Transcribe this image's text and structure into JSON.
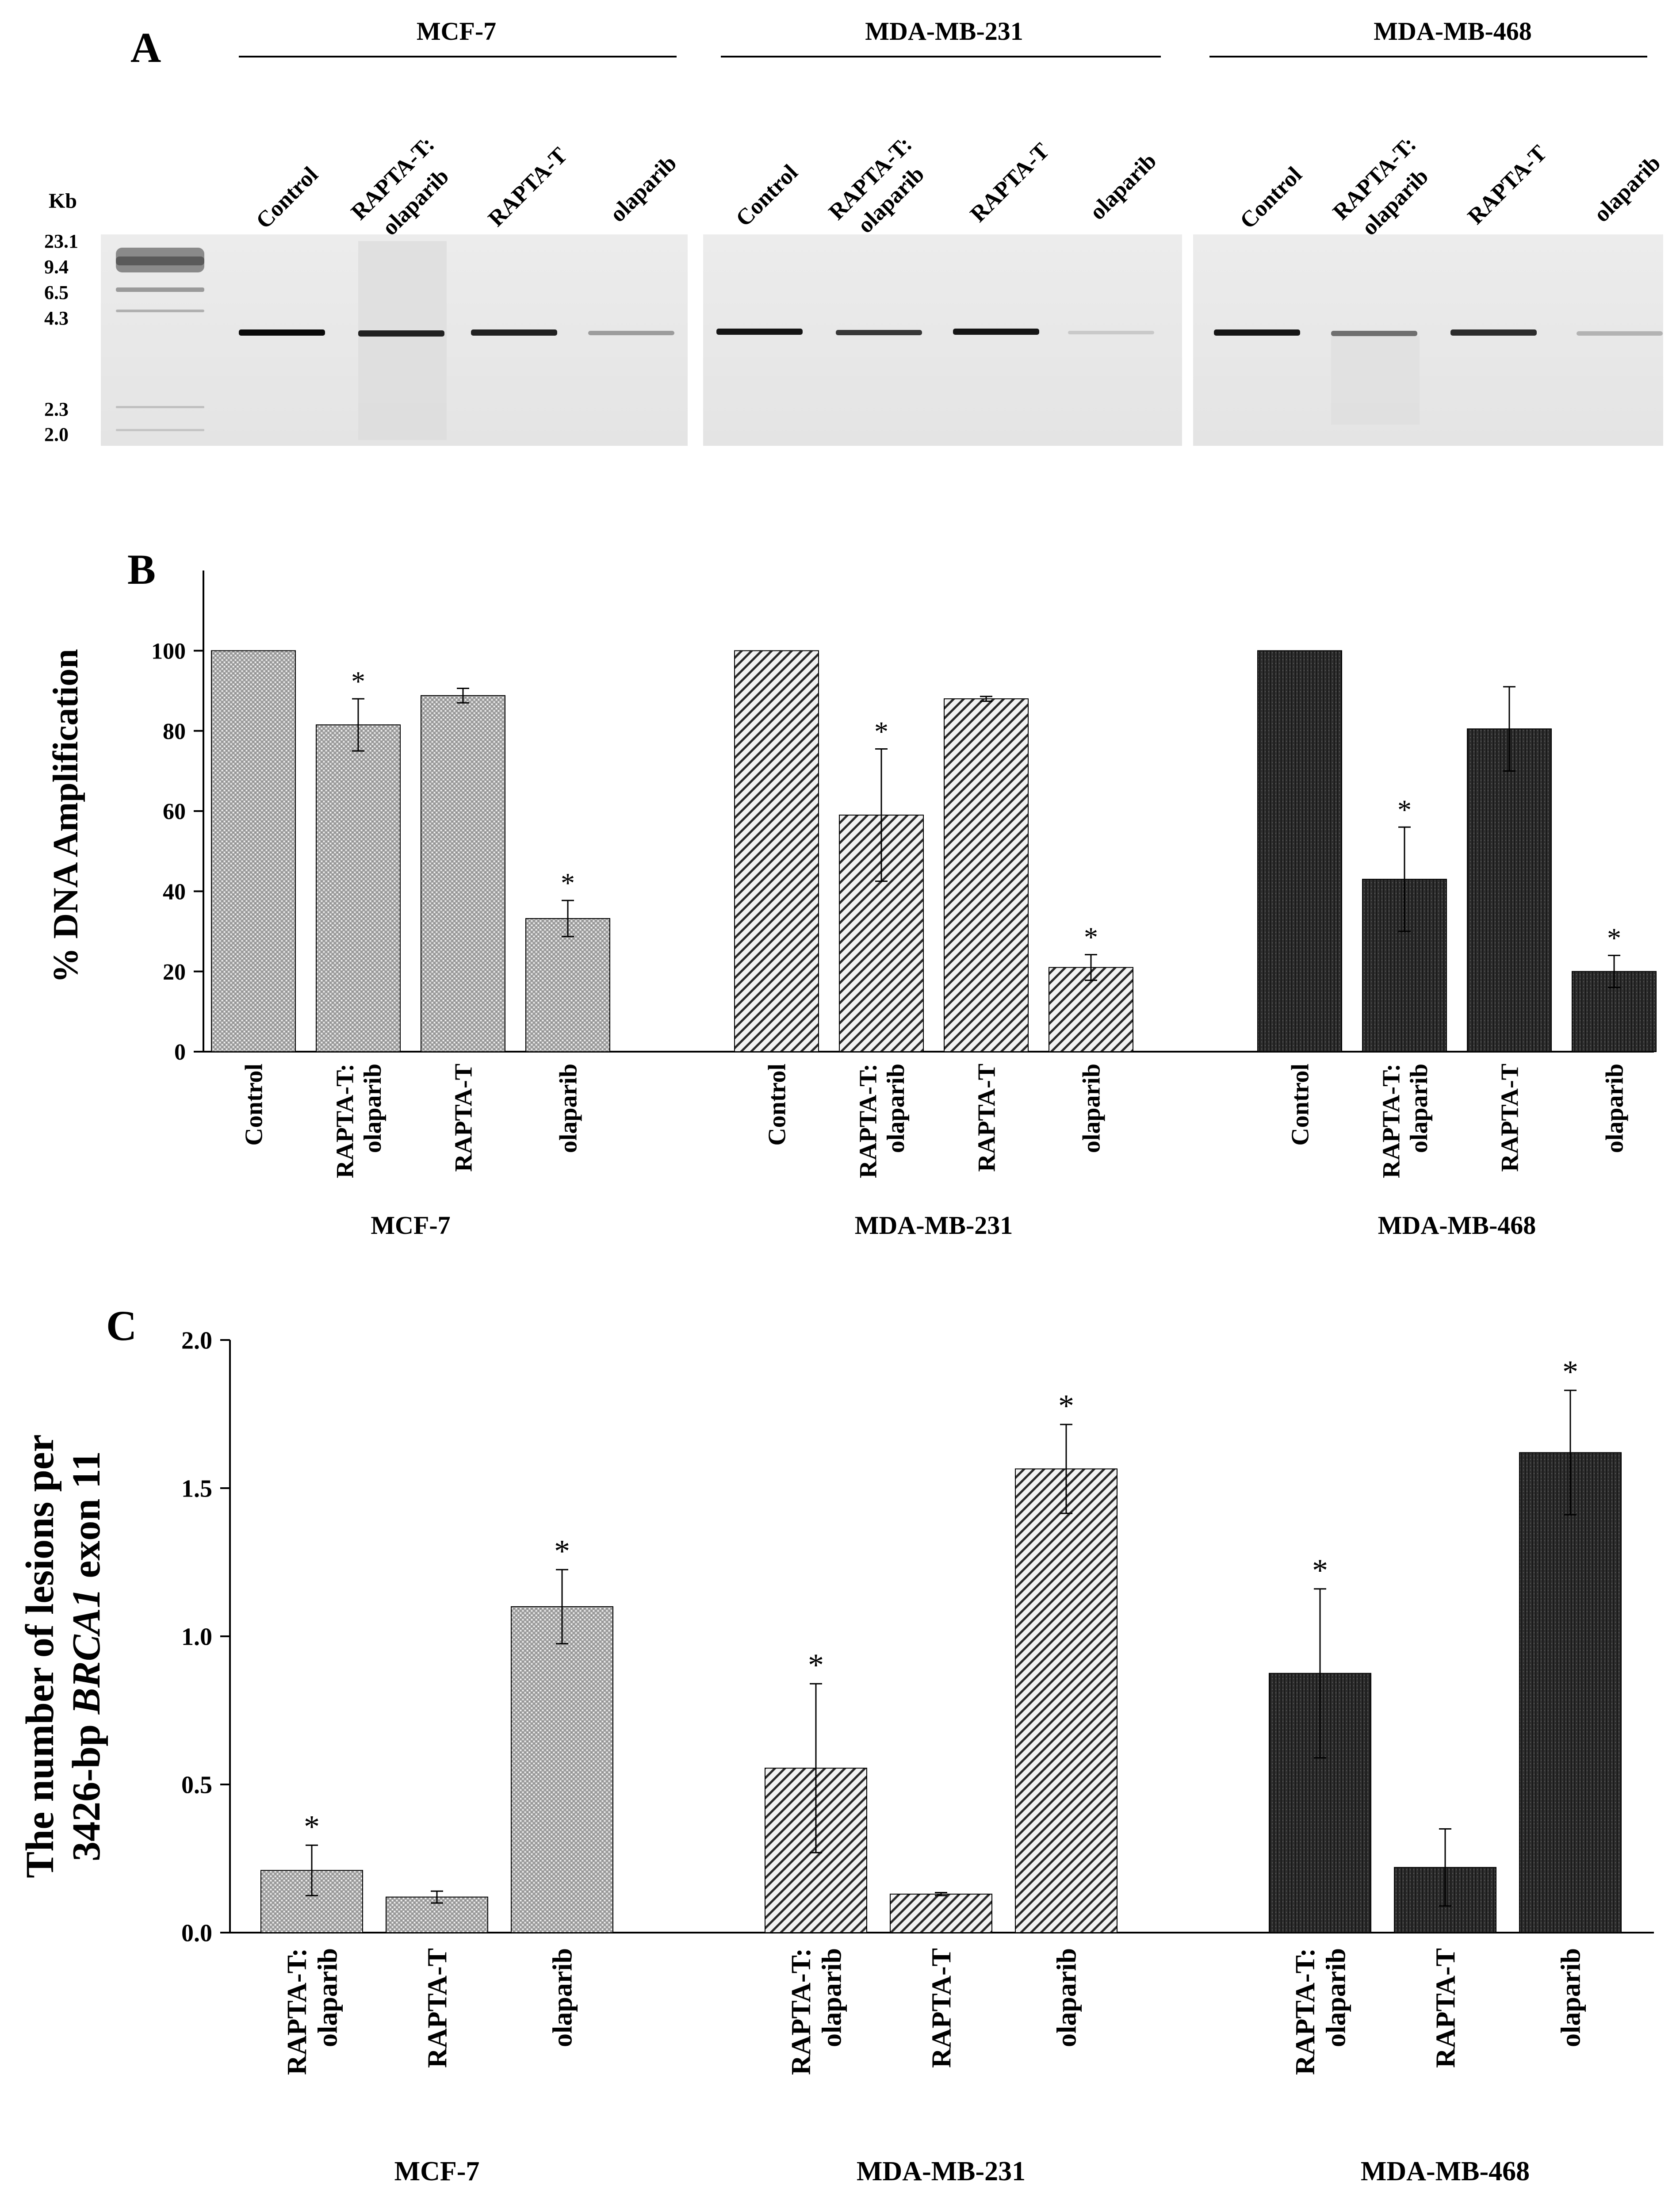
{
  "panel_a": {
    "letter": "A",
    "kb_label": "Kb",
    "ladder": [
      "23.1",
      "9.4",
      "6.5",
      "4.3",
      "2.3",
      "2.0"
    ],
    "cell_lines": [
      "MCF-7",
      "MDA-MB-231",
      "MDA-MB-468"
    ],
    "lanes": [
      [
        "Control",
        "RAPTA-T:",
        "olaparib",
        "RAPTA-T",
        "olaparib"
      ],
      [
        "Control",
        "RAPTA-T:",
        "olaparib",
        "RAPTA-T",
        "olaparib"
      ],
      [
        "Control",
        "RAPTA-T:",
        "olaparib",
        "RAPTA-T",
        "olaparib"
      ]
    ],
    "band_intensity": [
      [
        1.0,
        0.9,
        0.9,
        0.35
      ],
      [
        0.95,
        0.8,
        0.95,
        0.15
      ],
      [
        0.95,
        0.55,
        0.85,
        0.25
      ]
    ]
  },
  "chart_data": [
    {
      "type": "bar",
      "letter": "B",
      "title": "",
      "xlabel": "",
      "ylabel": "% DNA Amplification",
      "ylim": [
        0,
        120
      ],
      "yticks": [
        "0",
        "20",
        "40",
        "60",
        "80",
        "100"
      ],
      "groups": [
        "MCF-7",
        "MDA-MB-231",
        "MDA-MB-468"
      ],
      "categories": [
        "Control",
        "RAPTA-T:\nolaparib",
        "RAPTA-T",
        "olaparib"
      ],
      "series": [
        {
          "name": "MCF-7",
          "pattern": "dots",
          "values": [
            100,
            81.5,
            88.8,
            33.2
          ],
          "errors": [
            0,
            6.5,
            1.8,
            4.5
          ],
          "significant": [
            false,
            true,
            false,
            true
          ]
        },
        {
          "name": "MDA-MB-231",
          "pattern": "hatch",
          "values": [
            100,
            59,
            88,
            21
          ],
          "errors": [
            0,
            16.5,
            0.6,
            3.2
          ],
          "significant": [
            false,
            true,
            false,
            true
          ]
        },
        {
          "name": "MDA-MB-468",
          "pattern": "dark",
          "values": [
            100,
            43,
            80.5,
            20
          ],
          "errors": [
            0,
            13,
            10.5,
            4
          ],
          "significant": [
            false,
            true,
            false,
            true
          ]
        }
      ],
      "significance_marker": "*"
    },
    {
      "type": "bar",
      "letter": "C",
      "title": "",
      "xlabel": "",
      "ylabel_line1": "The number of lesions per",
      "ylabel_line2_prefix": "3426-bp ",
      "ylabel_line2_italic": "BRCA1",
      "ylabel_line2_suffix": " exon 11",
      "ylim": [
        0,
        2.0
      ],
      "yticks": [
        "0.0",
        "0.5",
        "1.0",
        "1.5",
        "2.0"
      ],
      "groups": [
        "MCF-7",
        "MDA-MB-231",
        "MDA-MB-468"
      ],
      "categories": [
        "RAPTA-T:\nolaparib",
        "RAPTA-T",
        "olaparib"
      ],
      "series": [
        {
          "name": "MCF-7",
          "pattern": "dots",
          "values": [
            0.21,
            0.12,
            1.1
          ],
          "errors": [
            0.085,
            0.02,
            0.125
          ],
          "significant": [
            true,
            false,
            true
          ]
        },
        {
          "name": "MDA-MB-231",
          "pattern": "hatch",
          "values": [
            0.555,
            0.13,
            1.565
          ],
          "errors": [
            0.285,
            0.005,
            0.15
          ],
          "significant": [
            true,
            false,
            true
          ]
        },
        {
          "name": "MDA-MB-468",
          "pattern": "dark",
          "values": [
            0.875,
            0.22,
            1.62
          ],
          "errors": [
            0.285,
            0.13,
            0.21
          ],
          "significant": [
            true,
            false,
            true
          ]
        }
      ],
      "significance_marker": "*"
    }
  ]
}
